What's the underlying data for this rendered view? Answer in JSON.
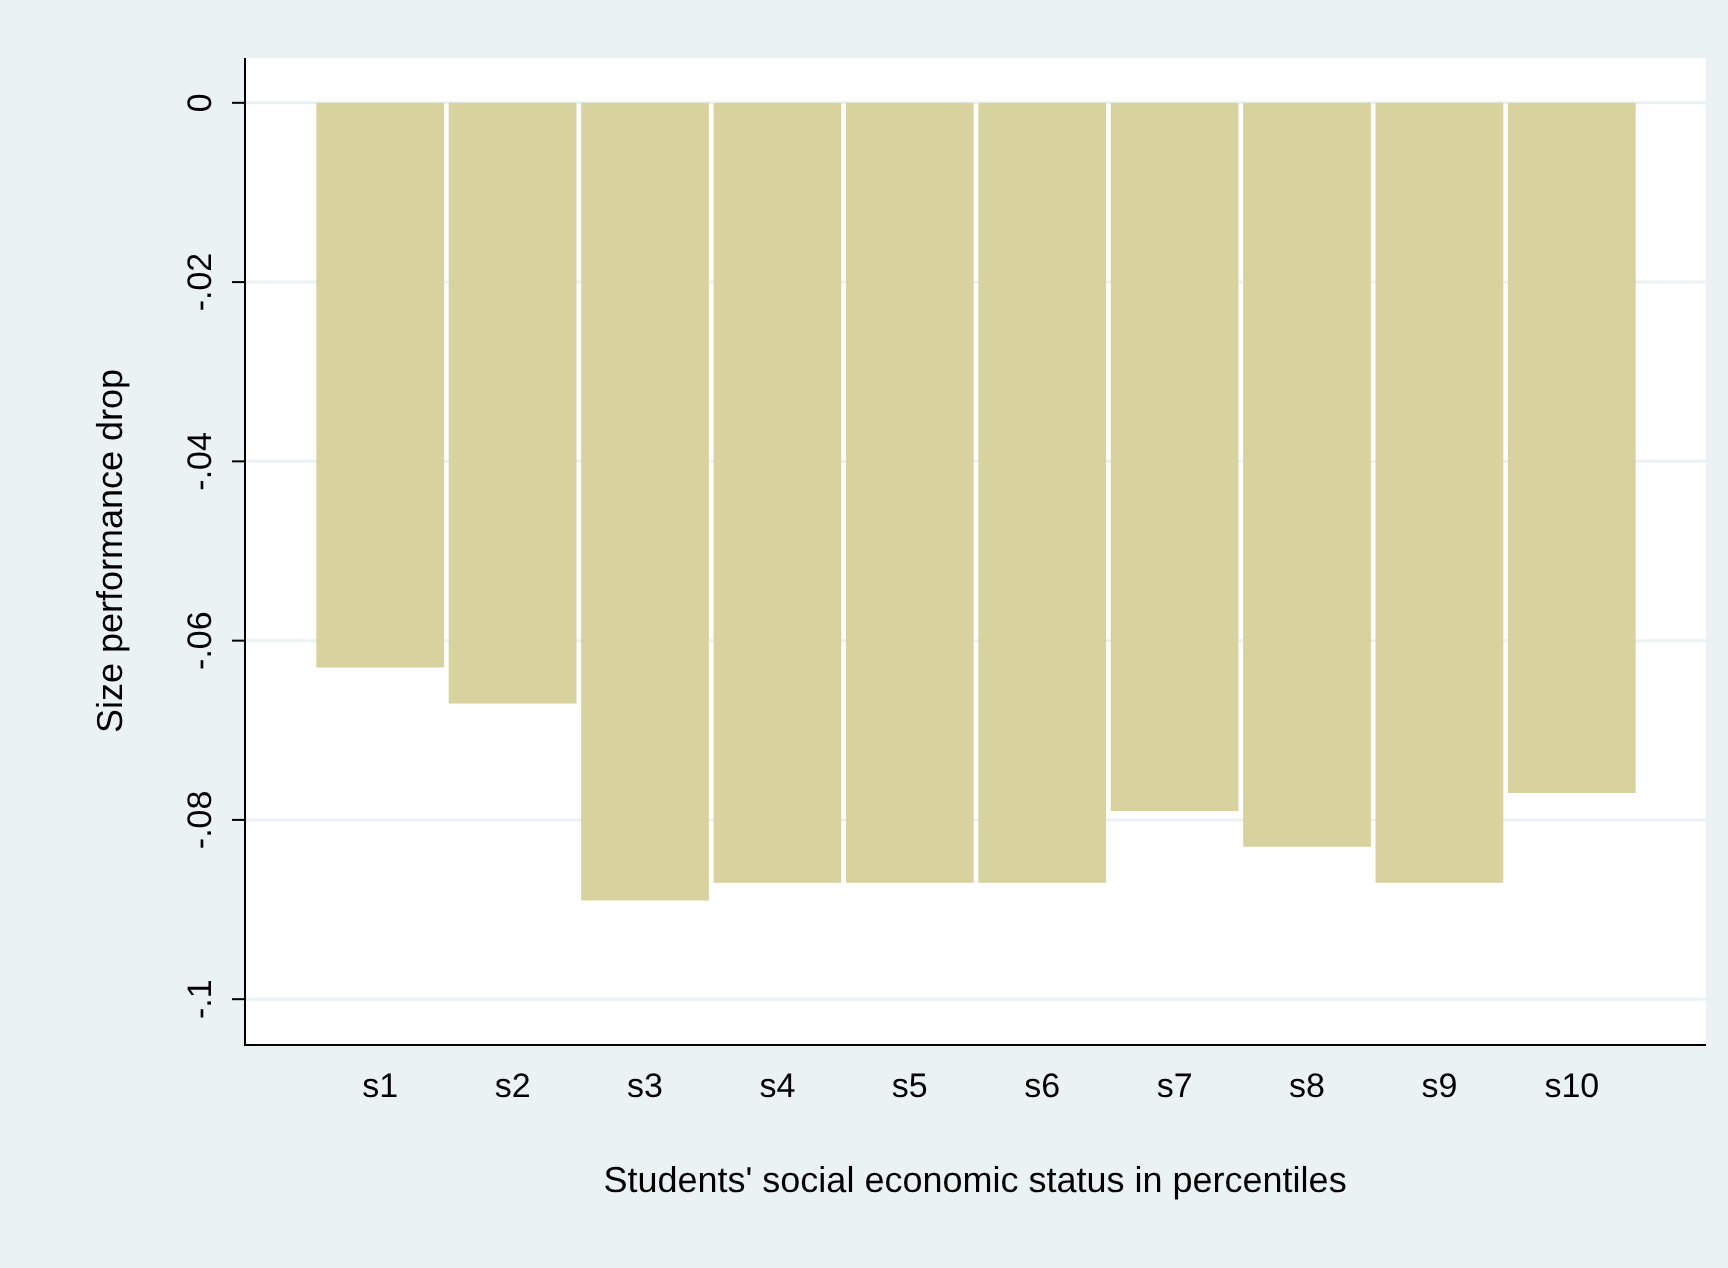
{
  "chart_data": {
    "type": "bar",
    "xlabel": "Students' social economic status in percentiles",
    "ylabel": "Size performance drop",
    "categories": [
      "s1",
      "s2",
      "s3",
      "s4",
      "s5",
      "s6",
      "s7",
      "s8",
      "s9",
      "s10"
    ],
    "values": [
      -0.063,
      -0.067,
      -0.089,
      -0.087,
      -0.087,
      -0.087,
      -0.079,
      -0.083,
      -0.087,
      -0.077
    ],
    "color": "#d8d29e",
    "ylim": [
      -0.105,
      0.005
    ],
    "yticks": [
      {
        "value": 0,
        "label": "0"
      },
      {
        "value": -0.02,
        "label": "-.02"
      },
      {
        "value": -0.04,
        "label": "-.04"
      },
      {
        "value": -0.06,
        "label": "-.06"
      },
      {
        "value": -0.08,
        "label": "-.08"
      },
      {
        "value": -0.1,
        "label": "-.1"
      }
    ],
    "grid": "y",
    "legend": false
  }
}
